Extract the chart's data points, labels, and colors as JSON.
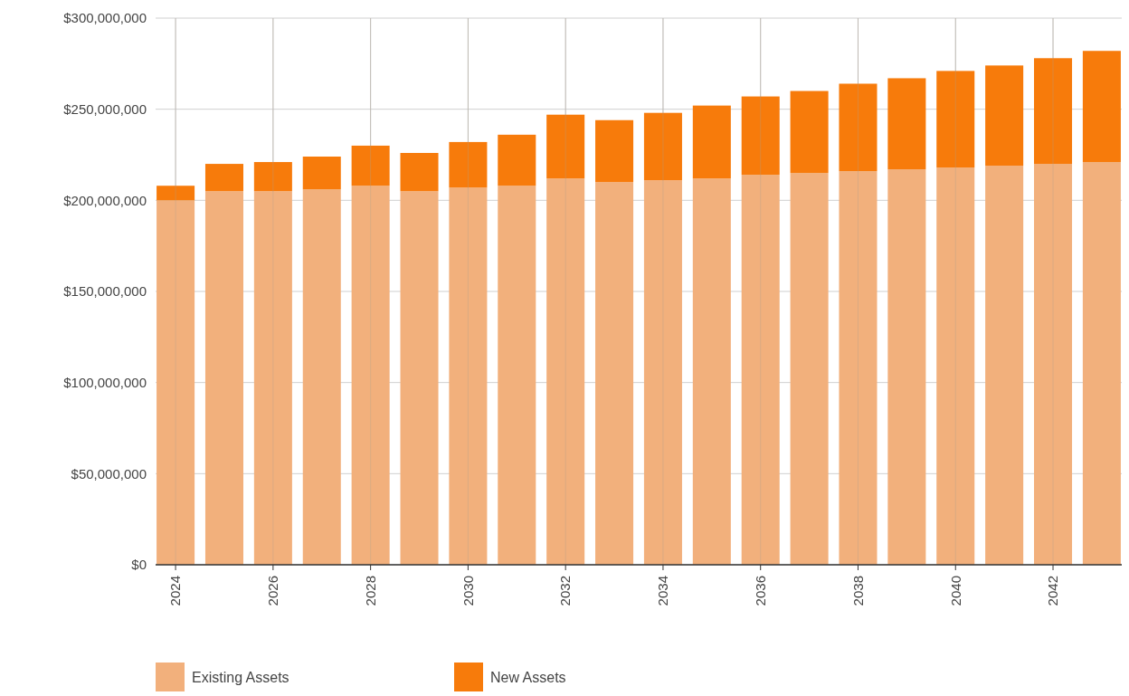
{
  "chart_data": {
    "type": "bar",
    "stacked": true,
    "categories": [
      "2024",
      null,
      "2026",
      null,
      "2028",
      null,
      "2030",
      null,
      "2032",
      null,
      "2034",
      null,
      "2036",
      null,
      "2038",
      null,
      "2040",
      null,
      "2042",
      null
    ],
    "series": [
      {
        "name": "Existing Assets",
        "color": "#f2b07c",
        "values": [
          200000000,
          205000000,
          205000000,
          206000000,
          208000000,
          205000000,
          207000000,
          208000000,
          212000000,
          210000000,
          211000000,
          212000000,
          214000000,
          215000000,
          216000000,
          217000000,
          218000000,
          219000000,
          220000000,
          221000000
        ]
      },
      {
        "name": "New Assets",
        "color": "#f77b0b",
        "values": [
          8000000,
          15000000,
          16000000,
          18000000,
          22000000,
          21000000,
          25000000,
          28000000,
          35000000,
          34000000,
          37000000,
          40000000,
          43000000,
          45000000,
          48000000,
          50000000,
          53000000,
          55000000,
          58000000,
          61000000
        ]
      }
    ],
    "ylim": [
      0,
      300000000
    ],
    "yticks": [
      {
        "value": 0,
        "label": "$0"
      },
      {
        "value": 50000000,
        "label": "$50,000,000"
      },
      {
        "value": 100000000,
        "label": "$100,000,000"
      },
      {
        "value": 150000000,
        "label": "$150,000,000"
      },
      {
        "value": 200000000,
        "label": "$200,000,000"
      },
      {
        "value": 250000000,
        "label": "$250,000,000"
      },
      {
        "value": 300000000,
        "label": "$300,000,000"
      }
    ],
    "grid": true,
    "legend": "bottom left"
  }
}
